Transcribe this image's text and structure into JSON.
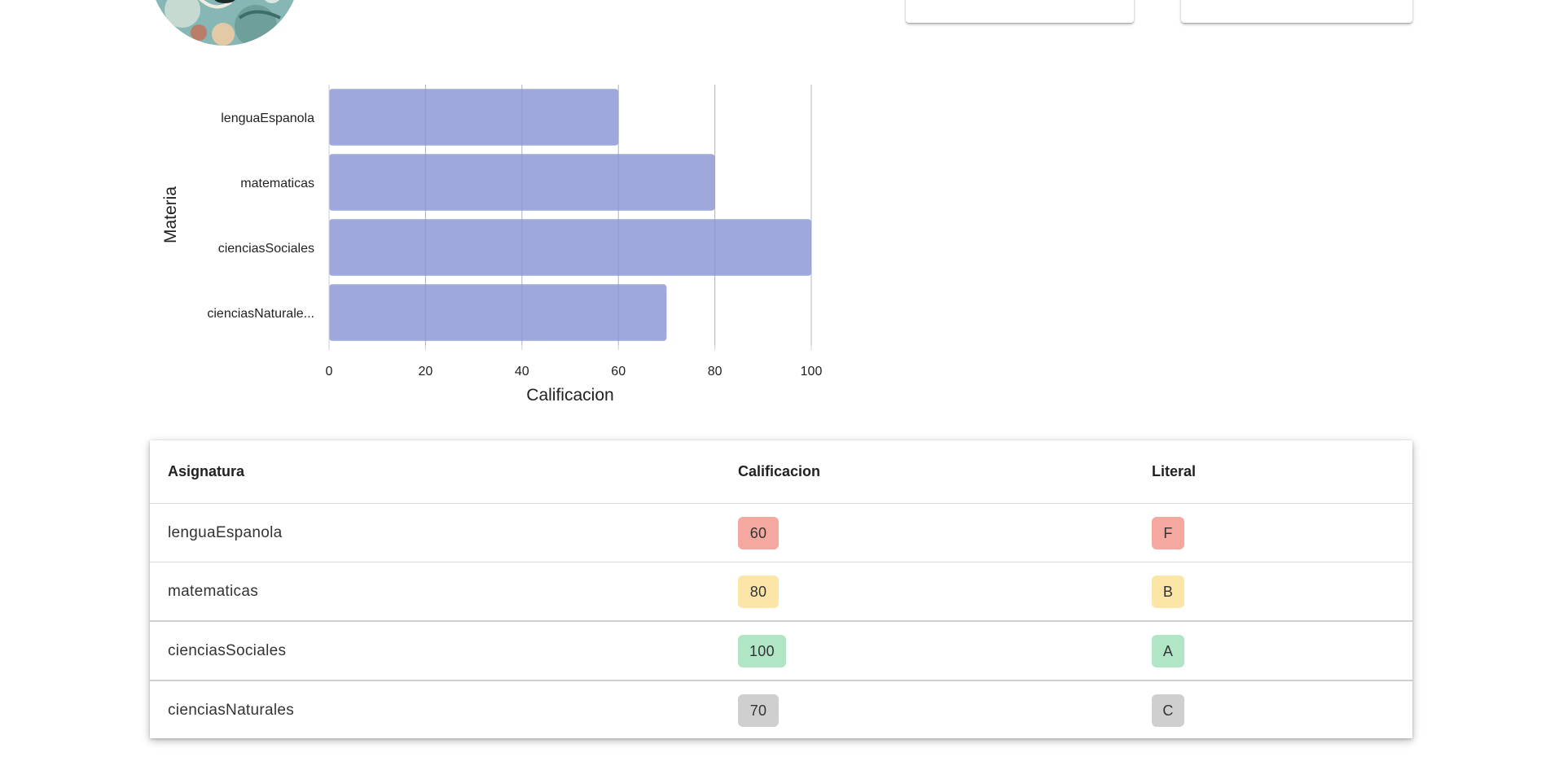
{
  "chart_data": {
    "type": "bar",
    "orientation": "horizontal",
    "categories": [
      "lenguaEspanola",
      "matematicas",
      "cienciasSociales",
      "cienciasNaturale..."
    ],
    "values": [
      60,
      80,
      100,
      70
    ],
    "xlabel": "Calificacion",
    "ylabel": "Materia",
    "xlim": [
      0,
      100
    ],
    "xticks": [
      0,
      20,
      40,
      60,
      80,
      100
    ],
    "grid": "vertical",
    "bar_color": "#9fa8da"
  },
  "table": {
    "headers": {
      "subject": "Asignatura",
      "score": "Calificacion",
      "literal": "Literal"
    },
    "rows": [
      {
        "subject": "lenguaEspanola",
        "score": "60",
        "literal": "F",
        "color": "#f5a8a0"
      },
      {
        "subject": "matematicas",
        "score": "80",
        "literal": "B",
        "color": "#fbe6a8"
      },
      {
        "subject": "cienciasSociales",
        "score": "100",
        "literal": "A",
        "color": "#b0e6c6"
      },
      {
        "subject": "cienciasNaturales",
        "score": "70",
        "literal": "C",
        "color": "#cfcfcf"
      }
    ]
  },
  "icons": {
    "avatar": "profile-avatar-image"
  }
}
